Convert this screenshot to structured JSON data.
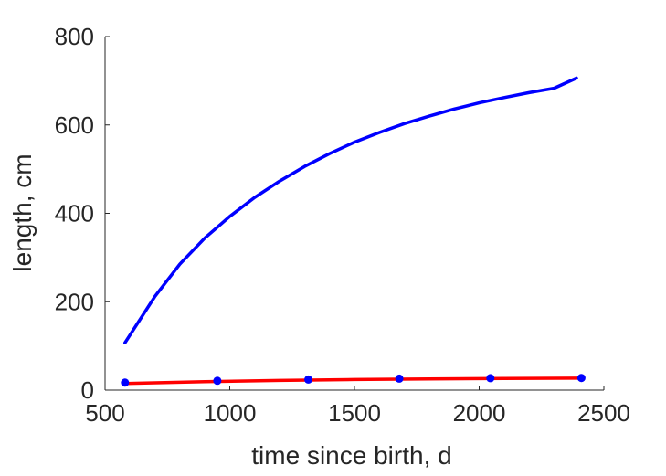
{
  "chart_data": {
    "type": "line",
    "title": "",
    "xlabel": "time since birth, d",
    "ylabel": "length, cm",
    "xlim": [
      500,
      2500
    ],
    "ylim": [
      0,
      800
    ],
    "xticks": [
      500,
      1000,
      1500,
      2000,
      2500
    ],
    "yticks": [
      0,
      200,
      400,
      600,
      800
    ],
    "grid": false,
    "legend": "none",
    "series": [
      {
        "kind": "line",
        "color": "#0000ff",
        "x": [
          580,
          700,
          800,
          900,
          1000,
          1100,
          1200,
          1300,
          1400,
          1500,
          1600,
          1700,
          1800,
          1900,
          2000,
          2100,
          2200,
          2300,
          2390
        ],
        "y": [
          107,
          212,
          285,
          344,
          393,
          436,
          473,
          506,
          535,
          561,
          583,
          603,
          620,
          636,
          650,
          662,
          673,
          683,
          706
        ]
      },
      {
        "kind": "line",
        "color": "#ff0000",
        "x": [
          580,
          900,
          1200,
          1500,
          1800,
          2100,
          2410
        ],
        "y": [
          15,
          19,
          22,
          24,
          25.5,
          26.5,
          27
        ]
      },
      {
        "kind": "points",
        "color": "#0000ff",
        "x": [
          580,
          950,
          1315,
          1680,
          2045,
          2410
        ],
        "y": [
          17,
          21,
          24,
          26,
          27,
          27.5
        ]
      }
    ]
  }
}
